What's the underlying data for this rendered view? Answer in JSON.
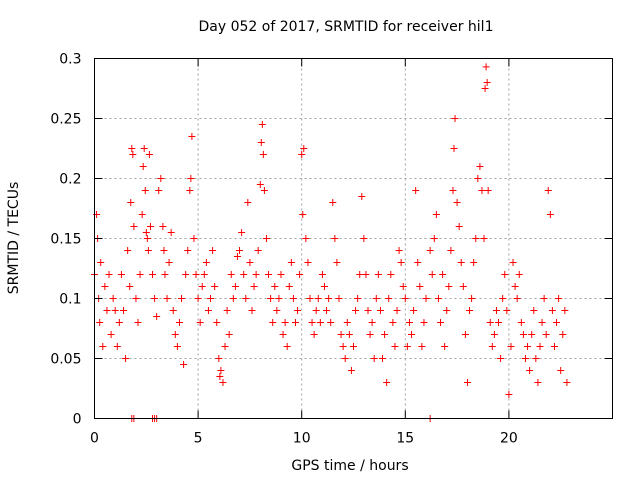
{
  "chart_data": {
    "type": "scatter",
    "title": "Day 052 of 2017, SRMTID for receiver hil1",
    "xlabel": "GPS time / hours",
    "ylabel": "SRMTID / TECUs",
    "xlim": [
      0,
      25
    ],
    "ylim": [
      0,
      0.3
    ],
    "x_ticks": [
      0,
      5,
      10,
      15,
      20
    ],
    "y_ticks": [
      0,
      0.05,
      0.1,
      0.15,
      0.2,
      0.25,
      0.3
    ],
    "x_tick_labels": [
      "0",
      "5",
      "10",
      "15",
      "20"
    ],
    "y_tick_labels": [
      "0",
      "0.05",
      "0.1",
      "0.15",
      "0.2",
      "0.25",
      "0.3"
    ],
    "grid": true,
    "marker": "+",
    "color": "#ff0000",
    "series": [
      {
        "points": [
          [
            0.0,
            0.12
          ],
          [
            0.1,
            0.17
          ],
          [
            0.15,
            0.15
          ],
          [
            0.2,
            0.1
          ],
          [
            0.25,
            0.08
          ],
          [
            0.3,
            0.13
          ],
          [
            0.4,
            0.06
          ],
          [
            0.5,
            0.11
          ],
          [
            0.6,
            0.09
          ],
          [
            0.7,
            0.12
          ],
          [
            0.8,
            0.07
          ],
          [
            0.9,
            0.1
          ],
          [
            1.0,
            0.09
          ],
          [
            1.1,
            0.06
          ],
          [
            1.2,
            0.08
          ],
          [
            1.3,
            0.12
          ],
          [
            1.4,
            0.09
          ],
          [
            1.5,
            0.05
          ],
          [
            1.6,
            0.14
          ],
          [
            1.7,
            0.11
          ],
          [
            1.75,
            0.18
          ],
          [
            1.8,
            0.225
          ],
          [
            1.85,
            0.22
          ],
          [
            1.9,
            0.16
          ],
          [
            2.0,
            0.1
          ],
          [
            2.1,
            0.08
          ],
          [
            2.2,
            0.12
          ],
          [
            2.3,
            0.17
          ],
          [
            2.35,
            0.21
          ],
          [
            2.4,
            0.225
          ],
          [
            2.45,
            0.19
          ],
          [
            2.5,
            0.155
          ],
          [
            2.55,
            0.15
          ],
          [
            2.6,
            0.14
          ],
          [
            2.65,
            0.22
          ],
          [
            2.7,
            0.16
          ],
          [
            2.8,
            0.12
          ],
          [
            2.9,
            0.1
          ],
          [
            3.0,
            0.085
          ],
          [
            3.1,
            0.19
          ],
          [
            3.2,
            0.2
          ],
          [
            3.3,
            0.16
          ],
          [
            3.35,
            0.14
          ],
          [
            3.4,
            0.12
          ],
          [
            3.5,
            0.1
          ],
          [
            3.6,
            0.13
          ],
          [
            3.7,
            0.155
          ],
          [
            3.8,
            0.09
          ],
          [
            3.9,
            0.07
          ],
          [
            4.0,
            0.06
          ],
          [
            4.1,
            0.08
          ],
          [
            4.2,
            0.1
          ],
          [
            4.3,
            0.045
          ],
          [
            4.4,
            0.12
          ],
          [
            4.5,
            0.14
          ],
          [
            4.6,
            0.19
          ],
          [
            4.65,
            0.2
          ],
          [
            4.7,
            0.235
          ],
          [
            4.8,
            0.15
          ],
          [
            4.9,
            0.12
          ],
          [
            5.0,
            0.1
          ],
          [
            5.1,
            0.08
          ],
          [
            5.2,
            0.11
          ],
          [
            5.3,
            0.12
          ],
          [
            5.4,
            0.13
          ],
          [
            5.5,
            0.09
          ],
          [
            5.6,
            0.1
          ],
          [
            5.7,
            0.14
          ],
          [
            5.8,
            0.11
          ],
          [
            5.9,
            0.08
          ],
          [
            6.0,
            0.05
          ],
          [
            6.05,
            0.035
          ],
          [
            6.1,
            0.04
          ],
          [
            6.2,
            0.03
          ],
          [
            6.3,
            0.06
          ],
          [
            6.4,
            0.09
          ],
          [
            6.5,
            0.07
          ],
          [
            6.6,
            0.12
          ],
          [
            6.7,
            0.1
          ],
          [
            6.8,
            0.11
          ],
          [
            6.9,
            0.135
          ],
          [
            7.0,
            0.14
          ],
          [
            7.1,
            0.155
          ],
          [
            7.2,
            0.12
          ],
          [
            7.3,
            0.1
          ],
          [
            7.4,
            0.18
          ],
          [
            7.5,
            0.13
          ],
          [
            7.6,
            0.09
          ],
          [
            7.7,
            0.11
          ],
          [
            7.8,
            0.12
          ],
          [
            7.9,
            0.14
          ],
          [
            8.0,
            0.195
          ],
          [
            8.05,
            0.23
          ],
          [
            8.1,
            0.245
          ],
          [
            8.15,
            0.22
          ],
          [
            8.2,
            0.19
          ],
          [
            8.3,
            0.15
          ],
          [
            8.4,
            0.12
          ],
          [
            8.5,
            0.1
          ],
          [
            8.6,
            0.08
          ],
          [
            8.7,
            0.11
          ],
          [
            8.8,
            0.09
          ],
          [
            8.9,
            0.1
          ],
          [
            9.0,
            0.12
          ],
          [
            9.1,
            0.07
          ],
          [
            9.2,
            0.08
          ],
          [
            9.3,
            0.06
          ],
          [
            9.4,
            0.11
          ],
          [
            9.5,
            0.13
          ],
          [
            9.6,
            0.1
          ],
          [
            9.7,
            0.08
          ],
          [
            9.8,
            0.09
          ],
          [
            9.9,
            0.12
          ],
          [
            10.0,
            0.22
          ],
          [
            10.05,
            0.17
          ],
          [
            10.1,
            0.225
          ],
          [
            10.2,
            0.15
          ],
          [
            10.3,
            0.13
          ],
          [
            10.4,
            0.1
          ],
          [
            10.5,
            0.08
          ],
          [
            10.6,
            0.07
          ],
          [
            10.7,
            0.09
          ],
          [
            10.8,
            0.1
          ],
          [
            10.9,
            0.08
          ],
          [
            11.0,
            0.12
          ],
          [
            11.1,
            0.11
          ],
          [
            11.2,
            0.09
          ],
          [
            11.3,
            0.1
          ],
          [
            11.4,
            0.08
          ],
          [
            11.5,
            0.18
          ],
          [
            11.6,
            0.15
          ],
          [
            11.7,
            0.13
          ],
          [
            11.8,
            0.1
          ],
          [
            11.9,
            0.07
          ],
          [
            12.0,
            0.06
          ],
          [
            12.1,
            0.05
          ],
          [
            12.2,
            0.08
          ],
          [
            12.3,
            0.07
          ],
          [
            12.4,
            0.04
          ],
          [
            12.5,
            0.06
          ],
          [
            12.6,
            0.09
          ],
          [
            12.7,
            0.1
          ],
          [
            12.8,
            0.12
          ],
          [
            12.9,
            0.185
          ],
          [
            13.0,
            0.15
          ],
          [
            13.1,
            0.12
          ],
          [
            13.2,
            0.09
          ],
          [
            13.3,
            0.07
          ],
          [
            13.4,
            0.08
          ],
          [
            13.5,
            0.05
          ],
          [
            13.6,
            0.1
          ],
          [
            13.7,
            0.12
          ],
          [
            13.8,
            0.09
          ],
          [
            13.9,
            0.05
          ],
          [
            14.0,
            0.07
          ],
          [
            14.1,
            0.03
          ],
          [
            14.2,
            0.1
          ],
          [
            14.3,
            0.12
          ],
          [
            14.4,
            0.08
          ],
          [
            14.5,
            0.06
          ],
          [
            14.6,
            0.09
          ],
          [
            14.7,
            0.14
          ],
          [
            14.8,
            0.13
          ],
          [
            14.9,
            0.11
          ],
          [
            15.0,
            0.1
          ],
          [
            15.1,
            0.06
          ],
          [
            15.2,
            0.08
          ],
          [
            15.3,
            0.07
          ],
          [
            15.4,
            0.09
          ],
          [
            15.5,
            0.19
          ],
          [
            15.6,
            0.13
          ],
          [
            15.7,
            0.11
          ],
          [
            15.8,
            0.06
          ],
          [
            15.9,
            0.08
          ],
          [
            16.0,
            0.1
          ],
          [
            16.2,
            0.14
          ],
          [
            16.3,
            0.12
          ],
          [
            16.4,
            0.15
          ],
          [
            16.5,
            0.17
          ],
          [
            16.6,
            0.1
          ],
          [
            16.7,
            0.08
          ],
          [
            16.8,
            0.12
          ],
          [
            16.9,
            0.06
          ],
          [
            17.0,
            0.09
          ],
          [
            17.1,
            0.11
          ],
          [
            17.2,
            0.14
          ],
          [
            17.3,
            0.19
          ],
          [
            17.35,
            0.225
          ],
          [
            17.4,
            0.25
          ],
          [
            17.5,
            0.18
          ],
          [
            17.6,
            0.16
          ],
          [
            17.7,
            0.13
          ],
          [
            17.8,
            0.11
          ],
          [
            17.9,
            0.07
          ],
          [
            18.0,
            0.03
          ],
          [
            18.1,
            0.09
          ],
          [
            18.2,
            0.1
          ],
          [
            18.3,
            0.13
          ],
          [
            18.4,
            0.15
          ],
          [
            18.5,
            0.2
          ],
          [
            18.6,
            0.21
          ],
          [
            18.7,
            0.19
          ],
          [
            18.8,
            0.15
          ],
          [
            18.85,
            0.275
          ],
          [
            18.9,
            0.293
          ],
          [
            18.95,
            0.28
          ],
          [
            19.0,
            0.19
          ],
          [
            19.1,
            0.08
          ],
          [
            19.2,
            0.06
          ],
          [
            19.3,
            0.07
          ],
          [
            19.4,
            0.09
          ],
          [
            19.5,
            0.08
          ],
          [
            19.6,
            0.05
          ],
          [
            19.7,
            0.1
          ],
          [
            19.8,
            0.12
          ],
          [
            19.9,
            0.09
          ],
          [
            20.0,
            0.02
          ],
          [
            20.1,
            0.06
          ],
          [
            20.2,
            0.13
          ],
          [
            20.3,
            0.11
          ],
          [
            20.4,
            0.1
          ],
          [
            20.5,
            0.12
          ],
          [
            20.6,
            0.08
          ],
          [
            20.7,
            0.07
          ],
          [
            20.8,
            0.05
          ],
          [
            20.9,
            0.06
          ],
          [
            21.0,
            0.04
          ],
          [
            21.1,
            0.07
          ],
          [
            21.2,
            0.09
          ],
          [
            21.3,
            0.05
          ],
          [
            21.4,
            0.03
          ],
          [
            21.5,
            0.06
          ],
          [
            21.6,
            0.08
          ],
          [
            21.7,
            0.1
          ],
          [
            21.8,
            0.07
          ],
          [
            21.9,
            0.19
          ],
          [
            22.0,
            0.17
          ],
          [
            22.1,
            0.09
          ],
          [
            22.2,
            0.06
          ],
          [
            22.3,
            0.08
          ],
          [
            22.4,
            0.1
          ],
          [
            22.5,
            0.04
          ],
          [
            22.6,
            0.07
          ],
          [
            22.7,
            0.09
          ],
          [
            22.8,
            0.03
          ],
          [
            1.8,
            0.0
          ],
          [
            1.9,
            0.0
          ],
          [
            2.8,
            0.0
          ],
          [
            2.9,
            0.0
          ],
          [
            3.0,
            0.0
          ],
          [
            16.2,
            0.0
          ]
        ]
      }
    ]
  }
}
